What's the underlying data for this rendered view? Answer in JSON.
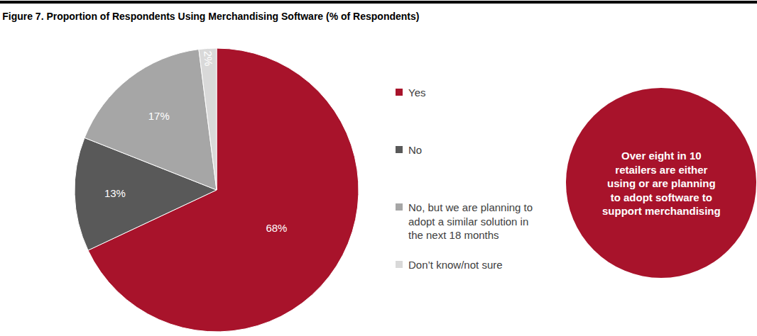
{
  "chart_data": {
    "type": "pie",
    "title": "Figure 7. Proportion of Respondents Using Merchandising Software (% of Respondents)",
    "categories": [
      "Yes",
      "No",
      "No, but we are planning to adopt a similar solution in the next 18 months",
      "Don’t know/not sure"
    ],
    "values": [
      68,
      13,
      17,
      2
    ],
    "value_labels": [
      "68%",
      "13%",
      "17%",
      "2%"
    ],
    "colors": [
      "#a8132b",
      "#595959",
      "#a6a6a6",
      "#d9d9d9"
    ],
    "data_labels": true,
    "legend": "right",
    "annotations": [
      "Over eight in 10 retailers are either using or are planning to adopt software to support merchandising"
    ]
  }
}
